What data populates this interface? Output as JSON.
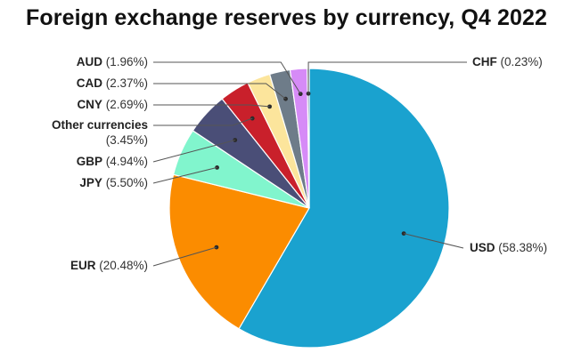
{
  "chart_data": {
    "type": "pie",
    "title": "Foreign exchange reserves by currency, Q4 2022",
    "unit": "%",
    "slices": [
      {
        "name": "USD",
        "value": 58.38,
        "label": "(58.38%)",
        "color": "#1aa2cf"
      },
      {
        "name": "EUR",
        "value": 20.48,
        "label": "(20.48%)",
        "color": "#fb8c00"
      },
      {
        "name": "JPY",
        "value": 5.5,
        "label": "(5.50%)",
        "color": "#81f5cd"
      },
      {
        "name": "GBP",
        "value": 4.94,
        "label": "(4.94%)",
        "color": "#4a4e77"
      },
      {
        "name": "Other currencies",
        "value": 3.45,
        "label": "(3.45%)",
        "color": "#c9202b"
      },
      {
        "name": "CNY",
        "value": 2.69,
        "label": "(2.69%)",
        "color": "#fce59c"
      },
      {
        "name": "CAD",
        "value": 2.37,
        "label": "(2.37%)",
        "color": "#6e7c89"
      },
      {
        "name": "AUD",
        "value": 1.96,
        "label": "(1.96%)",
        "color": "#d68bf7"
      },
      {
        "name": "CHF",
        "value": 0.23,
        "label": "(0.23%)",
        "color": "#3d6391"
      }
    ],
    "legend": "none"
  }
}
